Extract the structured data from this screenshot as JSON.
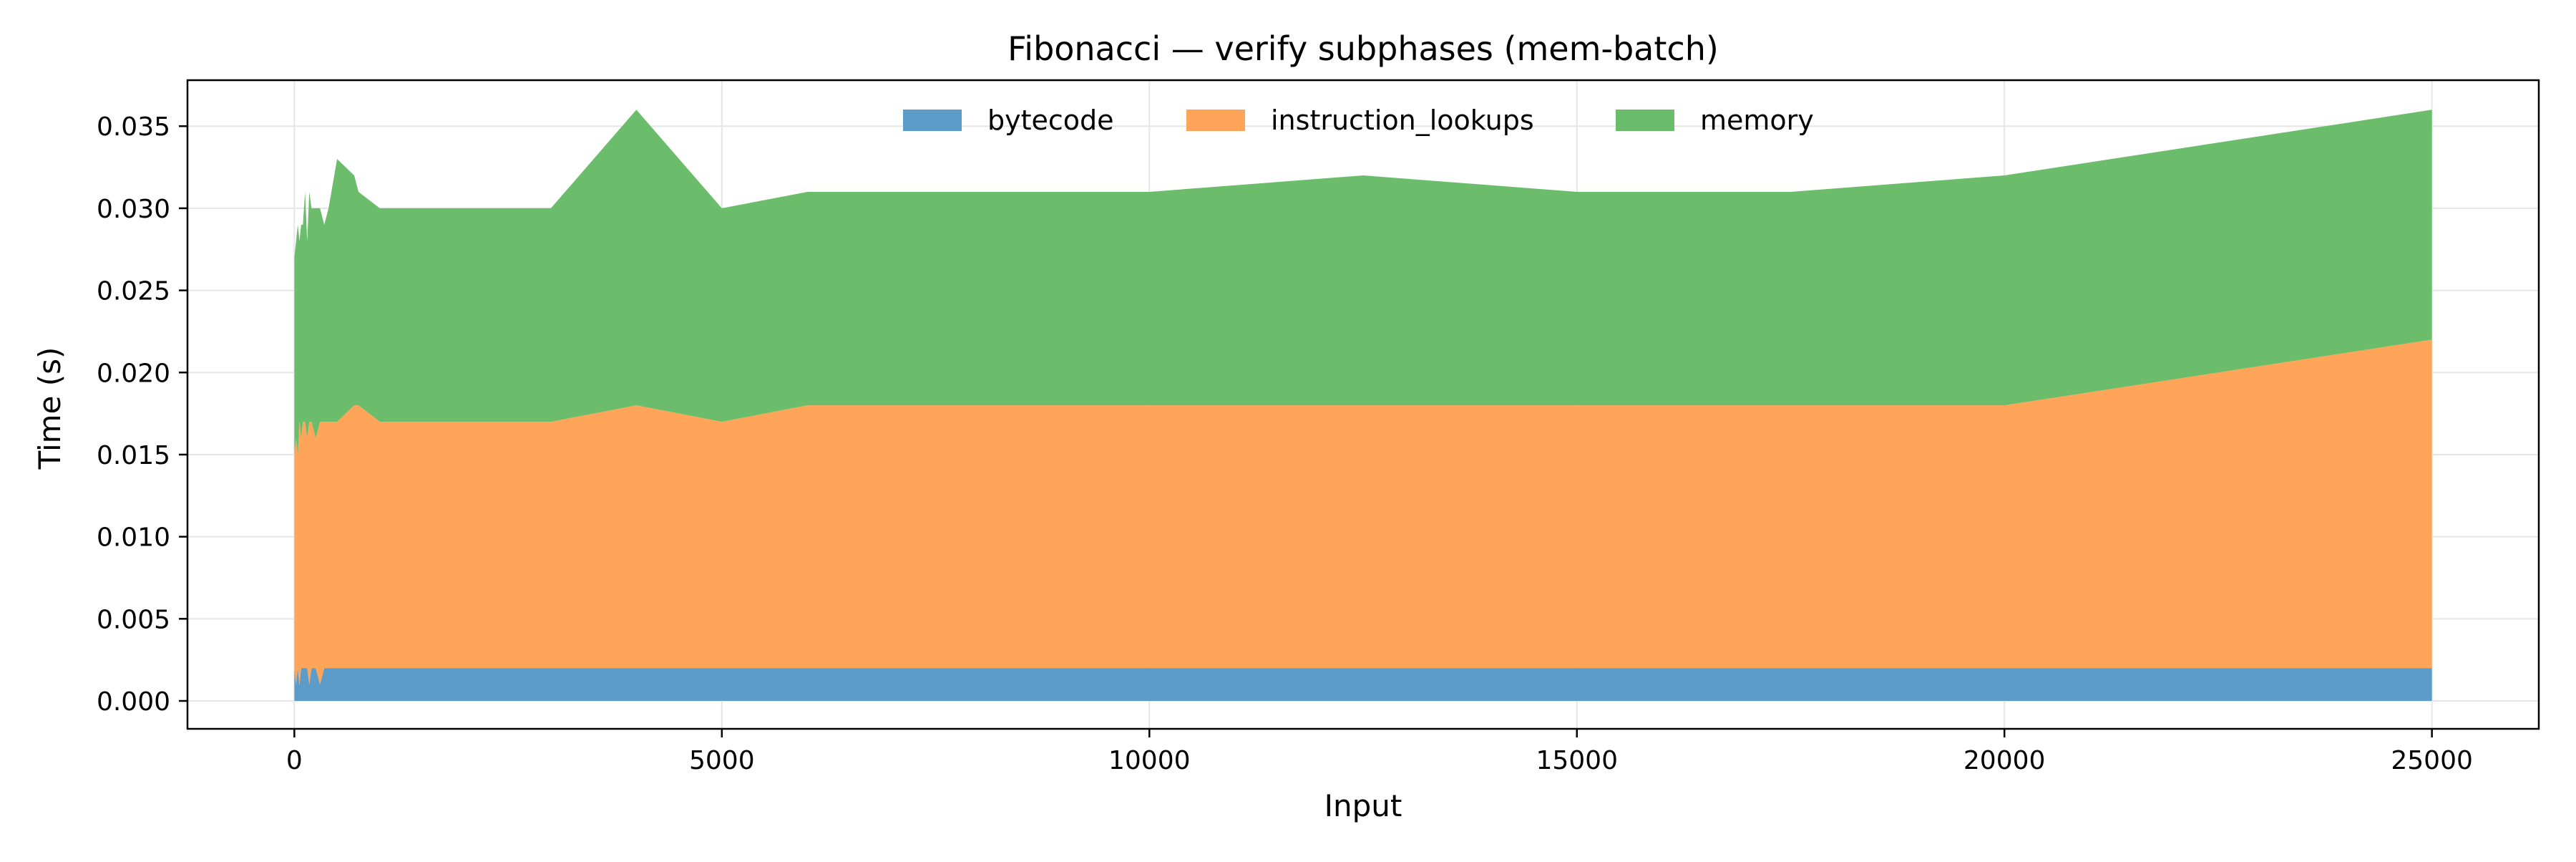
{
  "chart_data": {
    "type": "area",
    "stacked": true,
    "title": "Fibonacci — verify subphases (mem-batch)",
    "xlabel": "Input",
    "ylabel": "Time (s)",
    "xlim": [
      -1250,
      26250
    ],
    "ylim": [
      -0.0017,
      0.0378
    ],
    "xticks": [
      0,
      5000,
      10000,
      15000,
      20000,
      25000
    ],
    "xtick_labels": [
      "0",
      "5000",
      "10000",
      "15000",
      "20000",
      "25000"
    ],
    "yticks": [
      0.0,
      0.005,
      0.01,
      0.015,
      0.02,
      0.025,
      0.03,
      0.035
    ],
    "ytick_labels": [
      "0.000",
      "0.005",
      "0.010",
      "0.015",
      "0.020",
      "0.025",
      "0.030",
      "0.035"
    ],
    "grid": true,
    "legend": {
      "placement": "top-center",
      "columns": 3
    },
    "x": [
      0,
      20,
      40,
      60,
      80,
      100,
      125,
      150,
      175,
      200,
      250,
      300,
      350,
      400,
      500,
      700,
      750,
      1000,
      2000,
      3000,
      4000,
      5000,
      6000,
      7500,
      10000,
      12500,
      15000,
      17500,
      20000,
      25000
    ],
    "series": [
      {
        "name": "bytecode",
        "color": "#5b9cc8",
        "values": [
          0.002,
          0.001,
          0.002,
          0.001,
          0.002,
          0.002,
          0.002,
          0.002,
          0.001,
          0.002,
          0.002,
          0.001,
          0.002,
          0.002,
          0.002,
          0.002,
          0.002,
          0.002,
          0.002,
          0.002,
          0.002,
          0.002,
          0.002,
          0.002,
          0.002,
          0.002,
          0.002,
          0.002,
          0.002,
          0.002
        ]
      },
      {
        "name": "instruction_lookups",
        "color": "#fea55a",
        "values": [
          0.013,
          0.015,
          0.013,
          0.016,
          0.014,
          0.015,
          0.015,
          0.014,
          0.016,
          0.015,
          0.014,
          0.016,
          0.015,
          0.015,
          0.015,
          0.016,
          0.016,
          0.015,
          0.015,
          0.015,
          0.016,
          0.015,
          0.016,
          0.016,
          0.016,
          0.016,
          0.016,
          0.016,
          0.016,
          0.02
        ]
      },
      {
        "name": "memory",
        "color": "#6bbd6b",
        "values": [
          0.012,
          0.012,
          0.014,
          0.011,
          0.013,
          0.012,
          0.014,
          0.012,
          0.014,
          0.013,
          0.014,
          0.013,
          0.012,
          0.013,
          0.016,
          0.014,
          0.013,
          0.013,
          0.013,
          0.013,
          0.018,
          0.013,
          0.013,
          0.013,
          0.013,
          0.014,
          0.013,
          0.013,
          0.014,
          0.014
        ]
      }
    ]
  }
}
